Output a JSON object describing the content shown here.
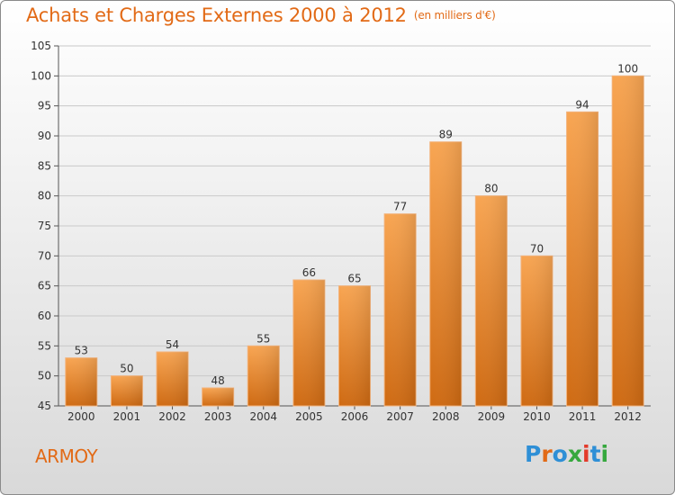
{
  "header": {
    "title": "Achats et Charges Externes 2000 à 2012",
    "subtitle": "(en milliers d'€)"
  },
  "footer": {
    "location": "ARMOY",
    "brand": "Proxiti",
    "brand_colors": [
      "#2e8fd6",
      "#e26a16",
      "#2e8fd6",
      "#36a83e",
      "#e33a2a",
      "#2e8fd6",
      "#36a83e"
    ]
  },
  "chart_data": {
    "type": "bar",
    "categories": [
      "2000",
      "2001",
      "2002",
      "2003",
      "2004",
      "2005",
      "2006",
      "2007",
      "2008",
      "2009",
      "2010",
      "2011",
      "2012"
    ],
    "values": [
      53,
      50,
      54,
      48,
      55,
      66,
      65,
      77,
      89,
      80,
      70,
      94,
      100
    ],
    "data_labels": [
      "53",
      "50",
      "54",
      "48",
      "55",
      "66",
      "65",
      "77",
      "89",
      "80",
      "70",
      "94",
      "100"
    ],
    "ylim": [
      45,
      105
    ],
    "yticks": [
      45,
      50,
      55,
      60,
      65,
      70,
      75,
      80,
      85,
      90,
      95,
      100,
      105
    ],
    "grid": true,
    "bar_color": "#f08a2c"
  }
}
